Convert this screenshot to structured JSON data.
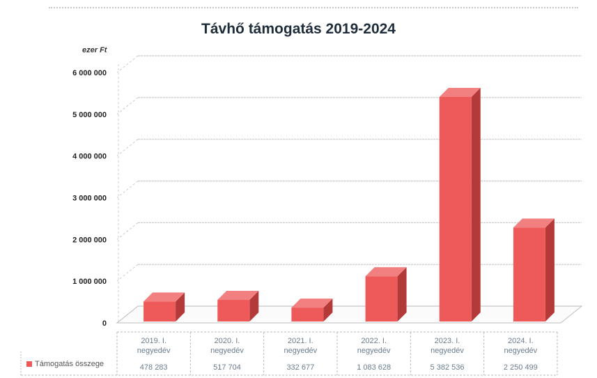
{
  "chart_data": {
    "type": "bar",
    "title": "Távhő támogatás 2019-2024",
    "ylabel": "ezer Ft",
    "xlabel": "",
    "ylim": [
      0,
      6000000
    ],
    "yticks": [
      "0",
      "1 000 000",
      "2 000 000",
      "3 000 000",
      "4 000 000",
      "5 000 000",
      "6 000 000"
    ],
    "categories": [
      [
        "2019. I.",
        "negyedév"
      ],
      [
        "2020. I.",
        "negyedév"
      ],
      [
        "2021. I.",
        "negyedév"
      ],
      [
        "2022. I.",
        "negyedév"
      ],
      [
        "2023. I.",
        "negyedév"
      ],
      [
        "2024. I.",
        "negyedév"
      ]
    ],
    "series": [
      {
        "name": "Támogatás összege",
        "values": [
          478283,
          517704,
          332677,
          1083628,
          5382536,
          2250499
        ],
        "value_labels": [
          "478 283",
          "517 704",
          "332 677",
          "1 083 628",
          "5 382 536",
          "2 250 499"
        ],
        "color": "#ee5a5a"
      }
    ],
    "grid": true,
    "legend": "bottom-left"
  }
}
